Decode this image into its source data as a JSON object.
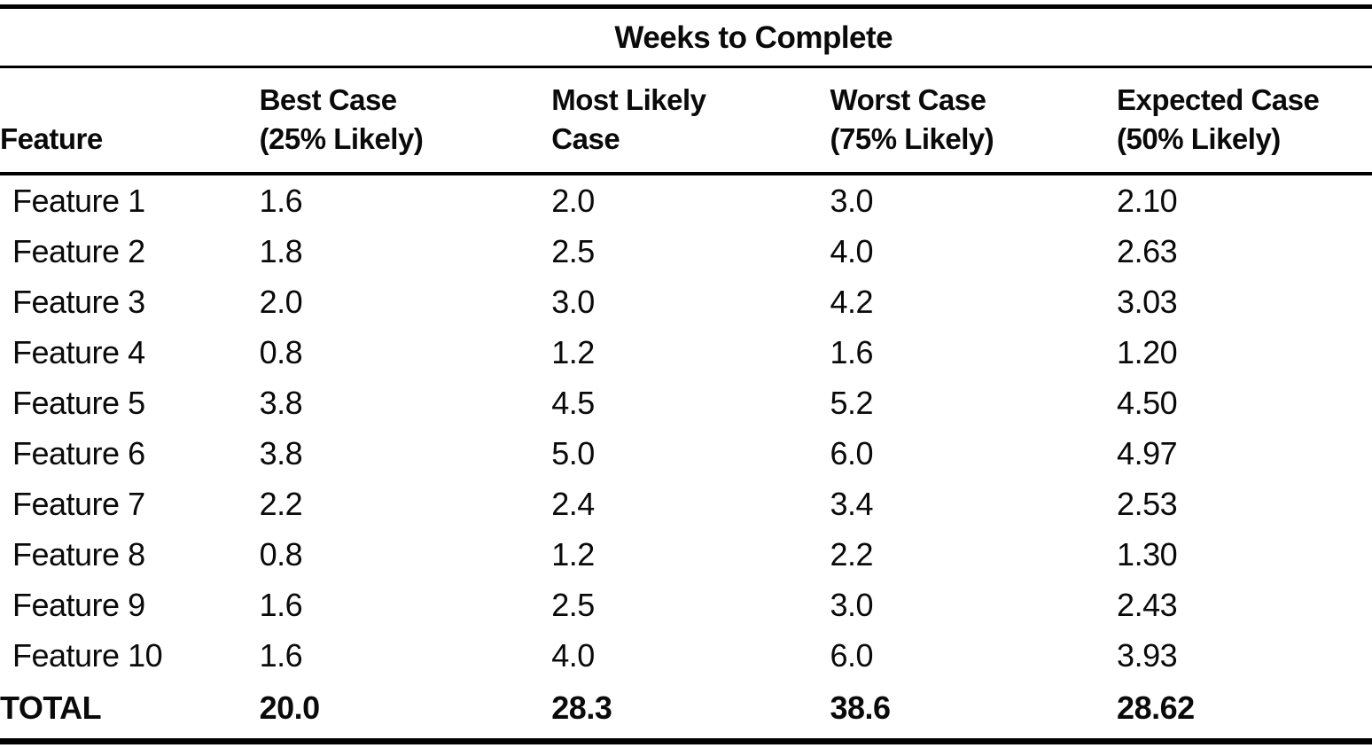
{
  "table": {
    "spanning_header": "Weeks to Complete",
    "columns": [
      {
        "line1": "Feature"
      },
      {
        "line1": "Best Case",
        "line2": "(25% Likely)"
      },
      {
        "line1": "Most Likely",
        "line2": "Case"
      },
      {
        "line1": "Worst Case",
        "line2": "(75% Likely)"
      },
      {
        "line1": "Expected Case",
        "line2": "(50% Likely)"
      }
    ],
    "rows": [
      {
        "feature": "Feature 1",
        "best": "1.6",
        "most_likely": "2.0",
        "worst": "3.0",
        "expected": "2.10"
      },
      {
        "feature": "Feature 2",
        "best": "1.8",
        "most_likely": "2.5",
        "worst": "4.0",
        "expected": "2.63"
      },
      {
        "feature": "Feature 3",
        "best": "2.0",
        "most_likely": "3.0",
        "worst": "4.2",
        "expected": "3.03"
      },
      {
        "feature": "Feature 4",
        "best": "0.8",
        "most_likely": "1.2",
        "worst": "1.6",
        "expected": "1.20"
      },
      {
        "feature": "Feature 5",
        "best": "3.8",
        "most_likely": "4.5",
        "worst": "5.2",
        "expected": "4.50"
      },
      {
        "feature": "Feature 6",
        "best": "3.8",
        "most_likely": "5.0",
        "worst": "6.0",
        "expected": "4.97"
      },
      {
        "feature": "Feature 7",
        "best": "2.2",
        "most_likely": "2.4",
        "worst": "3.4",
        "expected": "2.53"
      },
      {
        "feature": "Feature 8",
        "best": "0.8",
        "most_likely": "1.2",
        "worst": "2.2",
        "expected": "1.30"
      },
      {
        "feature": "Feature 9",
        "best": "1.6",
        "most_likely": "2.5",
        "worst": "3.0",
        "expected": "2.43"
      },
      {
        "feature": "Feature 10",
        "best": "1.6",
        "most_likely": "4.0",
        "worst": "6.0",
        "expected": "3.93"
      }
    ],
    "total": {
      "feature": "TOTAL",
      "best": "20.0",
      "most_likely": "28.3",
      "worst": "38.6",
      "expected": "28.62"
    }
  },
  "colors": {
    "text": "#0a0a0a",
    "background": "#ffffff",
    "rule": "#000000"
  },
  "chart_data": {
    "type": "table",
    "title": "Weeks to Complete",
    "columns": [
      "Feature",
      "Best Case (25% Likely)",
      "Most Likely Case",
      "Worst Case (75% Likely)",
      "Expected Case (50% Likely)"
    ],
    "rows": [
      [
        "Feature 1",
        1.6,
        2.0,
        3.0,
        2.1
      ],
      [
        "Feature 2",
        1.8,
        2.5,
        4.0,
        2.63
      ],
      [
        "Feature 3",
        2.0,
        3.0,
        4.2,
        3.03
      ],
      [
        "Feature 4",
        0.8,
        1.2,
        1.6,
        1.2
      ],
      [
        "Feature 5",
        3.8,
        4.5,
        5.2,
        4.5
      ],
      [
        "Feature 6",
        3.8,
        5.0,
        6.0,
        4.97
      ],
      [
        "Feature 7",
        2.2,
        2.4,
        3.4,
        2.53
      ],
      [
        "Feature 8",
        0.8,
        1.2,
        2.2,
        1.3
      ],
      [
        "Feature 9",
        1.6,
        2.5,
        3.0,
        2.43
      ],
      [
        "Feature 10",
        1.6,
        4.0,
        6.0,
        3.93
      ],
      [
        "TOTAL",
        20.0,
        28.3,
        38.6,
        28.62
      ]
    ]
  }
}
